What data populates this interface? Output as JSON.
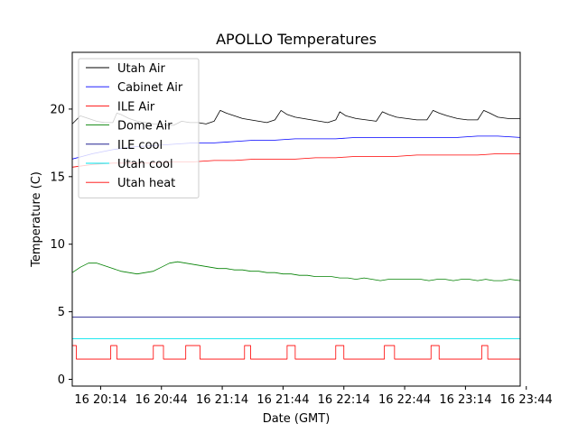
{
  "chart_data": {
    "type": "line",
    "title": "APOLLO Temperatures",
    "xlabel": "Date (GMT)",
    "ylabel": "Temperature (C)",
    "xlim": [
      0,
      221
    ],
    "ylim": [
      -0.5,
      24.2
    ],
    "x_unit": "minutes after 16 20:00 GMT",
    "x_ticks": [
      {
        "value": 14,
        "label": "16 20:14"
      },
      {
        "value": 44,
        "label": "16 20:44"
      },
      {
        "value": 74,
        "label": "16 21:14"
      },
      {
        "value": 104,
        "label": "16 21:44"
      },
      {
        "value": 134,
        "label": "16 22:14"
      },
      {
        "value": 164,
        "label": "16 22:44"
      },
      {
        "value": 194,
        "label": "16 23:14"
      },
      {
        "value": 224,
        "label": "16 23:44"
      }
    ],
    "y_ticks": [
      {
        "value": 0,
        "label": "0"
      },
      {
        "value": 5,
        "label": "5"
      },
      {
        "value": 10,
        "label": "10"
      },
      {
        "value": 15,
        "label": "15"
      },
      {
        "value": 20,
        "label": "20"
      }
    ],
    "legend_position": "top-left",
    "series": [
      {
        "name": "Utah Air",
        "color": "#000000",
        "x": [
          0,
          4,
          8,
          12,
          16,
          20,
          22,
          24,
          28,
          32,
          36,
          40,
          44,
          47,
          50,
          54,
          58,
          62,
          66,
          70,
          73,
          76,
          80,
          84,
          88,
          92,
          96,
          100,
          103,
          106,
          110,
          114,
          118,
          122,
          126,
          130,
          132,
          135,
          140,
          145,
          150,
          153,
          156,
          160,
          165,
          170,
          175,
          178,
          181,
          185,
          190,
          195,
          200,
          203,
          206,
          210,
          215,
          221
        ],
        "values": [
          18.9,
          19.5,
          19.3,
          19.1,
          19.0,
          19.0,
          19.7,
          19.6,
          19.3,
          19.1,
          19.0,
          18.9,
          18.9,
          18.8,
          18.8,
          19.1,
          19.0,
          19.0,
          18.9,
          19.1,
          19.9,
          19.7,
          19.5,
          19.3,
          19.2,
          19.1,
          19.0,
          19.2,
          19.9,
          19.6,
          19.4,
          19.3,
          19.2,
          19.1,
          19.0,
          19.2,
          19.8,
          19.5,
          19.3,
          19.2,
          19.1,
          19.8,
          19.6,
          19.4,
          19.3,
          19.2,
          19.2,
          19.9,
          19.7,
          19.5,
          19.3,
          19.2,
          19.2,
          19.9,
          19.7,
          19.4,
          19.3,
          19.3
        ]
      },
      {
        "name": "Cabinet Air",
        "color": "#0000ff",
        "x": [
          0,
          5,
          10,
          20,
          30,
          40,
          50,
          60,
          70,
          80,
          90,
          100,
          110,
          120,
          130,
          140,
          150,
          160,
          170,
          180,
          190,
          200,
          210,
          221
        ],
        "values": [
          16.3,
          16.5,
          16.7,
          17.0,
          17.2,
          17.3,
          17.4,
          17.5,
          17.5,
          17.6,
          17.7,
          17.7,
          17.8,
          17.8,
          17.8,
          17.9,
          17.9,
          17.9,
          17.9,
          17.9,
          17.9,
          18.0,
          18.0,
          17.9
        ]
      },
      {
        "name": "ILE Air",
        "color": "#ff0000",
        "x": [
          0,
          5,
          10,
          20,
          30,
          40,
          50,
          60,
          70,
          80,
          90,
          100,
          110,
          120,
          130,
          140,
          150,
          160,
          170,
          180,
          190,
          200,
          210,
          221
        ],
        "values": [
          15.7,
          15.8,
          15.9,
          16.0,
          16.0,
          16.0,
          16.1,
          16.1,
          16.2,
          16.2,
          16.3,
          16.3,
          16.3,
          16.4,
          16.4,
          16.5,
          16.5,
          16.5,
          16.6,
          16.6,
          16.6,
          16.6,
          16.7,
          16.7
        ]
      },
      {
        "name": "Dome Air",
        "color": "#008000",
        "x": [
          0,
          4,
          8,
          12,
          16,
          20,
          24,
          28,
          32,
          36,
          40,
          44,
          48,
          52,
          56,
          60,
          64,
          68,
          72,
          76,
          80,
          84,
          88,
          92,
          96,
          100,
          104,
          108,
          112,
          116,
          120,
          124,
          128,
          132,
          136,
          140,
          144,
          148,
          152,
          156,
          160,
          164,
          168,
          172,
          176,
          180,
          184,
          188,
          192,
          196,
          200,
          204,
          208,
          212,
          216,
          221
        ],
        "values": [
          7.9,
          8.3,
          8.6,
          8.6,
          8.4,
          8.2,
          8.0,
          7.9,
          7.8,
          7.9,
          8.0,
          8.3,
          8.6,
          8.7,
          8.6,
          8.5,
          8.4,
          8.3,
          8.2,
          8.2,
          8.1,
          8.1,
          8.0,
          8.0,
          7.9,
          7.9,
          7.8,
          7.8,
          7.7,
          7.7,
          7.6,
          7.6,
          7.6,
          7.5,
          7.5,
          7.4,
          7.5,
          7.4,
          7.3,
          7.4,
          7.4,
          7.4,
          7.4,
          7.4,
          7.3,
          7.4,
          7.4,
          7.3,
          7.4,
          7.4,
          7.3,
          7.4,
          7.3,
          7.3,
          7.4,
          7.3
        ]
      },
      {
        "name": "ILE cool",
        "color": "#000080",
        "x": [
          0,
          221
        ],
        "values": [
          4.6,
          4.6
        ]
      },
      {
        "name": "Utah cool",
        "color": "#00e5ee",
        "x": [
          0,
          221
        ],
        "values": [
          3.0,
          3.0
        ]
      },
      {
        "name": "Utah heat",
        "color": "#ff0000",
        "x": [
          0,
          2,
          2,
          19,
          19,
          22,
          22,
          40,
          40,
          45,
          45,
          56,
          56,
          63,
          63,
          85,
          85,
          88,
          88,
          106,
          106,
          110,
          110,
          130,
          130,
          134,
          134,
          154,
          154,
          159,
          159,
          177,
          177,
          181,
          181,
          202,
          202,
          205,
          205,
          221
        ],
        "values": [
          2.5,
          2.5,
          1.5,
          1.5,
          2.5,
          2.5,
          1.5,
          1.5,
          2.5,
          2.5,
          1.5,
          1.5,
          2.5,
          2.5,
          1.5,
          1.5,
          2.5,
          2.5,
          1.5,
          1.5,
          2.5,
          2.5,
          1.5,
          1.5,
          2.5,
          2.5,
          1.5,
          1.5,
          2.5,
          2.5,
          1.5,
          1.5,
          2.5,
          2.5,
          1.5,
          1.5,
          2.5,
          2.5,
          1.5,
          1.5
        ]
      }
    ]
  }
}
